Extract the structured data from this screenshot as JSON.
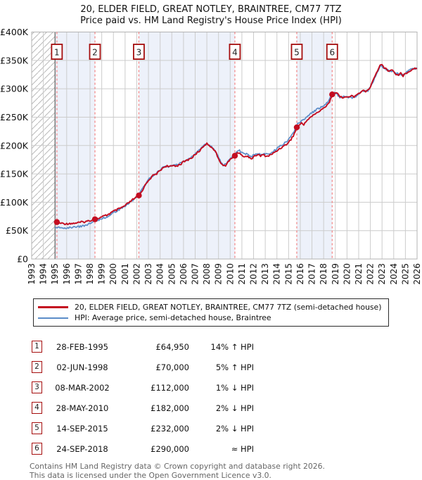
{
  "title": {
    "line1": "20, ELDER FIELD, GREAT NOTLEY, BRAINTREE, CM77 7TZ",
    "line2": "Price paid vs. HM Land Registry's House Price Index (HPI)"
  },
  "chart_data": {
    "type": "line",
    "xlim": [
      1993,
      2026
    ],
    "ylim_k": [
      0,
      400
    ],
    "grid": true,
    "y_ticks": [
      {
        "v": 0,
        "label": "£0"
      },
      {
        "v": 50,
        "label": "£50K"
      },
      {
        "v": 100,
        "label": "£100K"
      },
      {
        "v": 150,
        "label": "£150K"
      },
      {
        "v": 200,
        "label": "£200K"
      },
      {
        "v": 250,
        "label": "£250K"
      },
      {
        "v": 300,
        "label": "£300K"
      },
      {
        "v": 350,
        "label": "£350K"
      },
      {
        "v": 400,
        "label": "£400K"
      }
    ],
    "x_tick_labels": [
      "1993",
      "1994",
      "1995",
      "1996",
      "1997",
      "1998",
      "1999",
      "2000",
      "2001",
      "2002",
      "2003",
      "2004",
      "2005",
      "2006",
      "2007",
      "2008",
      "2009",
      "2010",
      "2011",
      "2012",
      "2013",
      "2014",
      "2015",
      "2016",
      "2017",
      "2018",
      "2019",
      "2020",
      "2021",
      "2022",
      "2023",
      "2024",
      "2025",
      "2026"
    ],
    "hatch_region": [
      1993,
      1995.0
    ],
    "hpi_data_start_year": 1995.0,
    "shaded_bands": [
      [
        1995.0,
        1998.42
      ],
      [
        2002.18,
        2010.4
      ],
      [
        2015.7,
        2018.73
      ]
    ],
    "series": [
      {
        "name": "20, ELDER FIELD, GREAT NOTLEY, BRAINTREE, CM77 7TZ (semi-detached house)",
        "color": "#c40c20",
        "width": 1.9,
        "points_year_priceK": [
          [
            1995.0,
            64
          ],
          [
            1995.16,
            64.95
          ],
          [
            1995.33,
            63.5
          ],
          [
            1995.5,
            63
          ],
          [
            1995.75,
            62.5
          ],
          [
            1996.0,
            62
          ],
          [
            1996.25,
            63
          ],
          [
            1996.5,
            62.5
          ],
          [
            1996.75,
            63.5
          ],
          [
            1997.0,
            64
          ],
          [
            1997.25,
            65
          ],
          [
            1997.5,
            65.5
          ],
          [
            1997.75,
            66.5
          ],
          [
            1998.0,
            68
          ],
          [
            1998.2,
            69
          ],
          [
            1998.42,
            70
          ],
          [
            1998.6,
            71
          ],
          [
            1998.8,
            72.5
          ],
          [
            1999.0,
            74
          ],
          [
            1999.25,
            76
          ],
          [
            1999.5,
            78
          ],
          [
            1999.75,
            81
          ],
          [
            2000.0,
            84
          ],
          [
            2000.25,
            86
          ],
          [
            2000.5,
            88.5
          ],
          [
            2000.75,
            91
          ],
          [
            2001.0,
            94
          ],
          [
            2001.25,
            98
          ],
          [
            2001.5,
            102
          ],
          [
            2001.75,
            106
          ],
          [
            2002.0,
            109
          ],
          [
            2002.18,
            112
          ],
          [
            2002.4,
            118
          ],
          [
            2002.6,
            126
          ],
          [
            2002.8,
            133
          ],
          [
            2003.0,
            139
          ],
          [
            2003.2,
            143
          ],
          [
            2003.4,
            147
          ],
          [
            2003.6,
            149
          ],
          [
            2003.8,
            152
          ],
          [
            2004.0,
            156
          ],
          [
            2004.2,
            160
          ],
          [
            2004.4,
            163
          ],
          [
            2004.6,
            164
          ],
          [
            2004.8,
            162
          ],
          [
            2005.0,
            164
          ],
          [
            2005.2,
            165
          ],
          [
            2005.4,
            164
          ],
          [
            2005.6,
            166
          ],
          [
            2005.8,
            168
          ],
          [
            2006.0,
            171
          ],
          [
            2006.2,
            173
          ],
          [
            2006.4,
            175
          ],
          [
            2006.6,
            177
          ],
          [
            2006.8,
            180
          ],
          [
            2007.0,
            184
          ],
          [
            2007.2,
            188
          ],
          [
            2007.4,
            191
          ],
          [
            2007.6,
            196
          ],
          [
            2007.8,
            201
          ],
          [
            2008.0,
            203
          ],
          [
            2008.2,
            201
          ],
          [
            2008.4,
            197
          ],
          [
            2008.6,
            193
          ],
          [
            2008.8,
            186
          ],
          [
            2009.0,
            177
          ],
          [
            2009.2,
            170
          ],
          [
            2009.4,
            164
          ],
          [
            2009.6,
            165
          ],
          [
            2009.8,
            170
          ],
          [
            2010.0,
            175
          ],
          [
            2010.2,
            179
          ],
          [
            2010.4,
            182
          ],
          [
            2010.6,
            186
          ],
          [
            2010.8,
            188
          ],
          [
            2011.0,
            183
          ],
          [
            2011.2,
            179
          ],
          [
            2011.4,
            182
          ],
          [
            2011.6,
            180
          ],
          [
            2011.8,
            177
          ],
          [
            2012.0,
            179
          ],
          [
            2012.2,
            183
          ],
          [
            2012.4,
            184
          ],
          [
            2012.6,
            181
          ],
          [
            2012.8,
            184
          ],
          [
            2013.0,
            182
          ],
          [
            2013.2,
            181
          ],
          [
            2013.4,
            183
          ],
          [
            2013.6,
            185
          ],
          [
            2013.8,
            188
          ],
          [
            2014.0,
            191
          ],
          [
            2014.2,
            194
          ],
          [
            2014.4,
            197
          ],
          [
            2014.6,
            199
          ],
          [
            2014.8,
            202
          ],
          [
            2015.0,
            206
          ],
          [
            2015.2,
            211
          ],
          [
            2015.4,
            217
          ],
          [
            2015.55,
            224
          ],
          [
            2015.7,
            231
          ],
          [
            2015.9,
            236
          ],
          [
            2016.1,
            239
          ],
          [
            2016.3,
            237
          ],
          [
            2016.5,
            243
          ],
          [
            2016.7,
            247
          ],
          [
            2016.9,
            250
          ],
          [
            2017.1,
            253
          ],
          [
            2017.3,
            256
          ],
          [
            2017.5,
            259
          ],
          [
            2017.7,
            261
          ],
          [
            2017.9,
            264
          ],
          [
            2018.1,
            268
          ],
          [
            2018.3,
            272
          ],
          [
            2018.5,
            277
          ],
          [
            2018.73,
            289
          ],
          [
            2019.0,
            294
          ],
          [
            2019.2,
            291
          ],
          [
            2019.4,
            286
          ],
          [
            2019.6,
            284
          ],
          [
            2019.8,
            287
          ],
          [
            2020.0,
            284
          ],
          [
            2020.2,
            286
          ],
          [
            2020.4,
            288
          ],
          [
            2020.6,
            285
          ],
          [
            2020.8,
            289
          ],
          [
            2021.0,
            292
          ],
          [
            2021.2,
            294
          ],
          [
            2021.4,
            297
          ],
          [
            2021.6,
            294
          ],
          [
            2021.8,
            298
          ],
          [
            2022.0,
            303
          ],
          [
            2022.2,
            313
          ],
          [
            2022.4,
            323
          ],
          [
            2022.6,
            332
          ],
          [
            2022.9,
            344
          ],
          [
            2023.0,
            341
          ],
          [
            2023.2,
            337
          ],
          [
            2023.4,
            334
          ],
          [
            2023.6,
            331
          ],
          [
            2023.8,
            334
          ],
          [
            2024.0,
            330
          ],
          [
            2024.2,
            326
          ],
          [
            2024.4,
            324
          ],
          [
            2024.6,
            328
          ],
          [
            2024.8,
            323
          ],
          [
            2025.0,
            326
          ],
          [
            2025.2,
            330
          ],
          [
            2025.4,
            332
          ],
          [
            2025.6,
            334
          ],
          [
            2025.8,
            336
          ],
          [
            2026.0,
            336
          ]
        ]
      },
      {
        "name": "HPI: Average price, semi-detached house, Braintree",
        "color": "#5b8cc8",
        "width": 1.7,
        "points_year_priceK": [
          [
            1995.0,
            56
          ],
          [
            1995.5,
            55.5
          ],
          [
            1996.0,
            55
          ],
          [
            1996.5,
            55.5
          ],
          [
            1997.0,
            57
          ],
          [
            1997.5,
            58.5
          ],
          [
            1998.0,
            63
          ],
          [
            1998.42,
            66.7
          ],
          [
            1999.0,
            71
          ],
          [
            1999.5,
            75
          ],
          [
            2000.0,
            82
          ],
          [
            2000.5,
            87
          ],
          [
            2001.0,
            93.5
          ],
          [
            2001.5,
            101.5
          ],
          [
            2002.0,
            108.5
          ],
          [
            2002.18,
            113
          ],
          [
            2002.6,
            127
          ],
          [
            2003.0,
            140
          ],
          [
            2003.5,
            149
          ],
          [
            2004.0,
            157
          ],
          [
            2004.4,
            164
          ],
          [
            2004.8,
            163
          ],
          [
            2005.2,
            166
          ],
          [
            2005.6,
            167
          ],
          [
            2006.0,
            172
          ],
          [
            2006.4,
            176
          ],
          [
            2006.8,
            181
          ],
          [
            2007.2,
            189
          ],
          [
            2007.6,
            197
          ],
          [
            2008.0,
            204
          ],
          [
            2008.4,
            198
          ],
          [
            2008.8,
            187
          ],
          [
            2009.2,
            171
          ],
          [
            2009.4,
            165
          ],
          [
            2009.8,
            171
          ],
          [
            2010.2,
            181
          ],
          [
            2010.4,
            185.6
          ],
          [
            2010.8,
            191
          ],
          [
            2011.0,
            187
          ],
          [
            2011.4,
            185
          ],
          [
            2011.8,
            180
          ],
          [
            2012.2,
            186
          ],
          [
            2012.6,
            184
          ],
          [
            2013.0,
            185
          ],
          [
            2013.4,
            186
          ],
          [
            2013.8,
            191
          ],
          [
            2014.2,
            198
          ],
          [
            2014.6,
            203
          ],
          [
            2015.0,
            211
          ],
          [
            2015.4,
            222
          ],
          [
            2015.7,
            236.6
          ],
          [
            2016.1,
            244
          ],
          [
            2016.5,
            249
          ],
          [
            2016.9,
            256
          ],
          [
            2017.3,
            262
          ],
          [
            2017.7,
            267
          ],
          [
            2018.1,
            272
          ],
          [
            2018.5,
            281
          ],
          [
            2018.73,
            291
          ],
          [
            2019.0,
            293
          ],
          [
            2019.4,
            285
          ],
          [
            2019.8,
            286
          ],
          [
            2020.2,
            285
          ],
          [
            2020.6,
            284
          ],
          [
            2021.0,
            291
          ],
          [
            2021.4,
            296
          ],
          [
            2021.8,
            297
          ],
          [
            2022.2,
            311
          ],
          [
            2022.6,
            330
          ],
          [
            2022.9,
            342
          ],
          [
            2023.2,
            336
          ],
          [
            2023.6,
            332
          ],
          [
            2024.0,
            331
          ],
          [
            2024.4,
            326
          ],
          [
            2024.8,
            324
          ],
          [
            2025.2,
            331
          ],
          [
            2025.6,
            335
          ],
          [
            2026.0,
            336
          ]
        ]
      }
    ],
    "sales_markers": [
      {
        "n": "1",
        "year": 1995.16,
        "price_k": 64.95
      },
      {
        "n": "2",
        "year": 1998.42,
        "price_k": 70
      },
      {
        "n": "3",
        "year": 2002.18,
        "price_k": 112
      },
      {
        "n": "4",
        "year": 2010.4,
        "price_k": 182
      },
      {
        "n": "5",
        "year": 2015.7,
        "price_k": 232
      },
      {
        "n": "6",
        "year": 2018.73,
        "price_k": 290
      }
    ]
  },
  "colors": {
    "price_line": "#c40c20",
    "hpi_line": "#5b8cc8",
    "band": "#edf1fa",
    "sale_dash": "#f28080",
    "marker_border": "#a50d0d",
    "grid": "#cccccc",
    "plot_border": "#b3b3b3",
    "hatch": "#b9b9b9",
    "data_start_line": "#4a4a4a"
  },
  "legend": {
    "items": [
      {
        "label": "20, ELDER FIELD, GREAT NOTLEY, BRAINTREE, CM77 7TZ (semi-detached house)",
        "color": "#c40c20",
        "thickness": 3
      },
      {
        "label": "HPI: Average price, semi-detached house, Braintree",
        "color": "#5b8cc8",
        "thickness": 2
      }
    ]
  },
  "table": {
    "rows": [
      {
        "num": "1",
        "date": "28-FEB-1995",
        "price": "£64,950",
        "vs_hpi": "14% ↑ HPI"
      },
      {
        "num": "2",
        "date": "02-JUN-1998",
        "price": "£70,000",
        "vs_hpi": "5% ↑ HPI"
      },
      {
        "num": "3",
        "date": "08-MAR-2002",
        "price": "£112,000",
        "vs_hpi": "1% ↓ HPI"
      },
      {
        "num": "4",
        "date": "28-MAY-2010",
        "price": "£182,000",
        "vs_hpi": "2% ↓ HPI"
      },
      {
        "num": "5",
        "date": "14-SEP-2015",
        "price": "£232,000",
        "vs_hpi": "2% ↓ HPI"
      },
      {
        "num": "6",
        "date": "24-SEP-2018",
        "price": "£290,000",
        "vs_hpi": "≈ HPI"
      }
    ]
  },
  "footer": {
    "line1": "Contains HM Land Registry data © Crown copyright and database right 2026.",
    "line2": "This data is licensed under the Open Government Licence v3.0."
  }
}
